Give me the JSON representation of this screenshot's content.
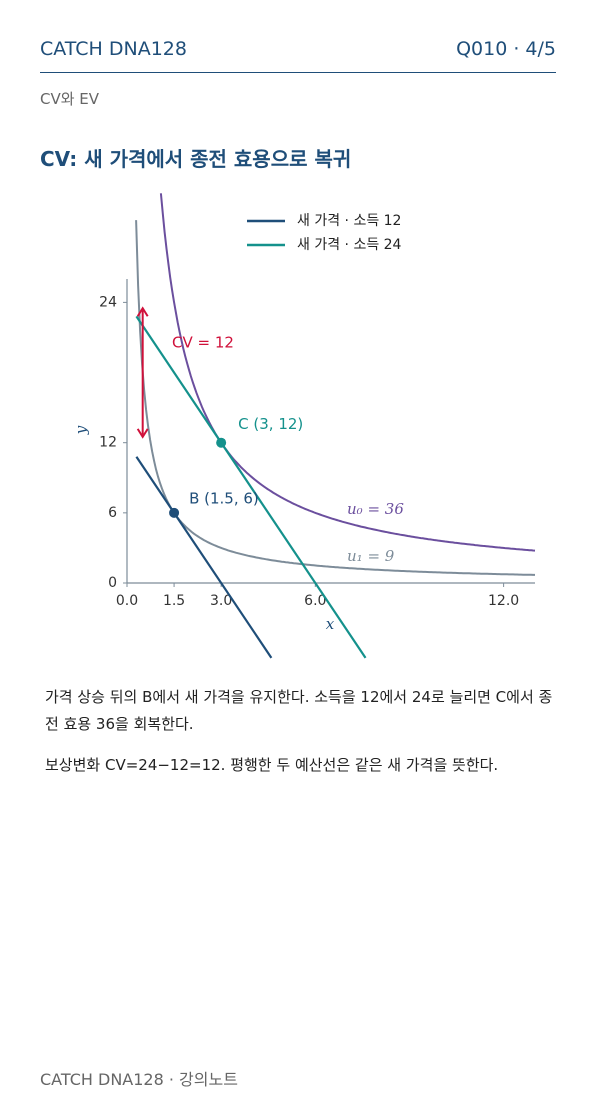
{
  "header": {
    "brand": "CATCH DNA128",
    "page": "Q010 · 4/5",
    "section": "CV와 EV"
  },
  "title": "CV: 새 가격에서 종전 효용으로 복귀",
  "chart_data": {
    "type": "line",
    "xlabel": "x",
    "ylabel": "y",
    "xlim": [
      0,
      13
    ],
    "ylim": [
      0,
      26
    ],
    "xticks": [
      {
        "value": 0,
        "label": "0.0"
      },
      {
        "value": 1.5,
        "label": "1.5"
      },
      {
        "value": 3,
        "label": "3.0"
      },
      {
        "value": 6,
        "label": "6.0"
      },
      {
        "value": 12,
        "label": "12.0"
      }
    ],
    "yticks": [
      0,
      6,
      12,
      24
    ],
    "legend": "upper right",
    "series": [
      {
        "name": "새 가격 · 소득 12",
        "color": "#1f4e79",
        "x": [
          0.3,
          4.6
        ],
        "values": [
          10.8,
          -6.4
        ]
      },
      {
        "name": "새 가격 · 소득 24",
        "color": "#14918c",
        "x": [
          0.3,
          7.6
        ],
        "values": [
          22.8,
          -6.4
        ]
      }
    ],
    "curves": [
      {
        "label": "u₀ = 36",
        "k": 36,
        "color": "#6b4f9e",
        "xlim": [
          1.08,
          13
        ]
      },
      {
        "label": "u₁ = 9",
        "k": 9,
        "color": "#7d8c99",
        "xlim": [
          0.29,
          13
        ]
      }
    ],
    "points": [
      {
        "label": "B (1.5, 6)",
        "x": 1.5,
        "y": 6,
        "color": "#1f4e79"
      },
      {
        "label": "C (3, 12)",
        "x": 3,
        "y": 12,
        "color": "#14918c"
      }
    ],
    "cv_arrow": {
      "label": "CV = 12",
      "x": 0.5,
      "y": [
        12.5,
        23.5
      ],
      "color": "#d0103a"
    }
  },
  "paragraphs": [
    "가격 상승 뒤의 B에서 새 가격을 유지한다. 소득을 12에서 24로 늘리면 C에서 종전 효용 36을 회복한다.",
    "보상변화 CV=24−12=12. 평행한 두 예산선은 같은 새 가격을 뜻한다."
  ],
  "footer": "CATCH DNA128 · 강의노트"
}
